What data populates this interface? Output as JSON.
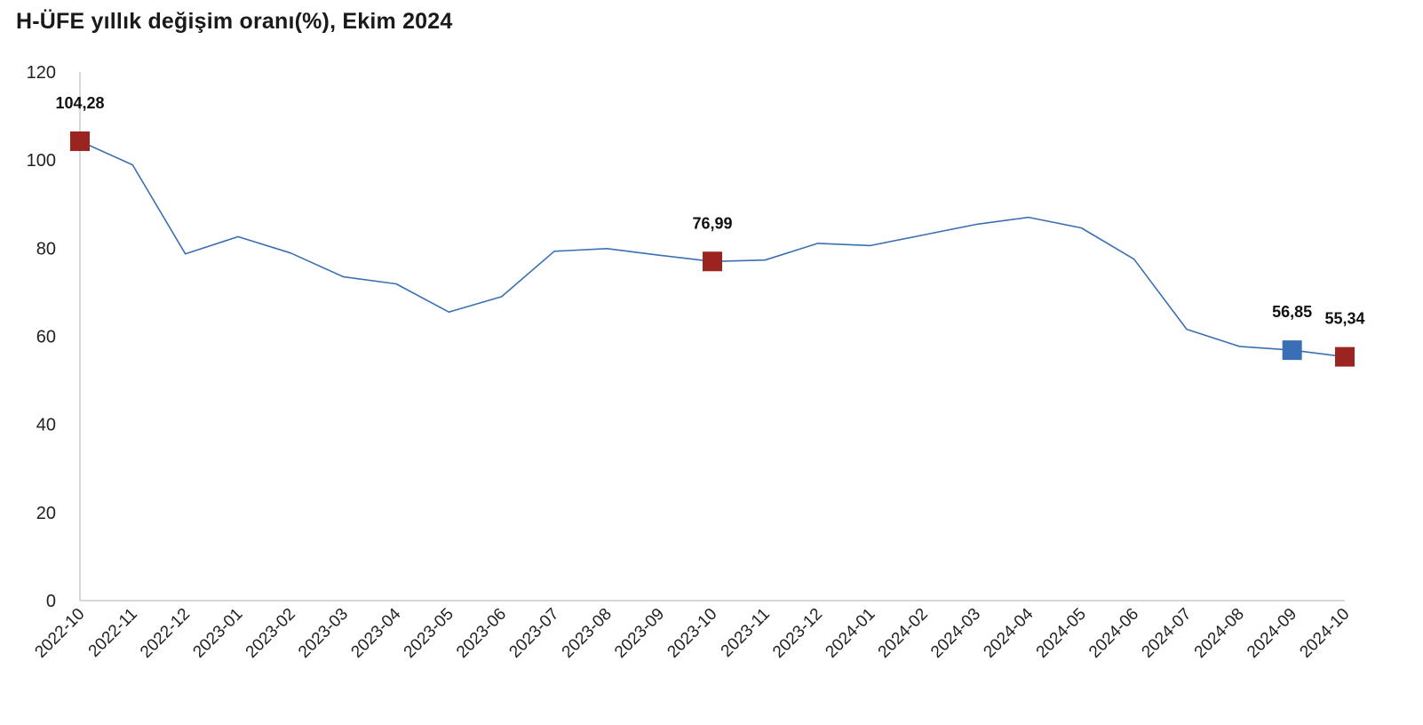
{
  "chart_data": {
    "type": "line",
    "title": "H-ÜFE yıllık değişim oranı(%), Ekim 2024",
    "xlabel": "",
    "ylabel": "",
    "ylim": [
      0,
      120
    ],
    "yticks": [
      0,
      20,
      40,
      60,
      80,
      100,
      120
    ],
    "grid": false,
    "legend": "none",
    "categories": [
      "2022-10",
      "2022-11",
      "2022-12",
      "2023-01",
      "2023-02",
      "2023-03",
      "2023-04",
      "2023-05",
      "2023-06",
      "2023-07",
      "2023-08",
      "2023-09",
      "2023-10",
      "2023-11",
      "2023-12",
      "2024-01",
      "2024-02",
      "2024-03",
      "2024-04",
      "2024-05",
      "2024-06",
      "2024-07",
      "2024-08",
      "2024-09",
      "2024-10"
    ],
    "series": [
      {
        "values": [
          104.28,
          98.9,
          78.7,
          82.6,
          78.9,
          73.5,
          71.9,
          65.5,
          69.0,
          79.3,
          79.9,
          78.4,
          76.99,
          77.3,
          81.1,
          80.6,
          83.0,
          85.4,
          87.0,
          84.6,
          77.5,
          61.6,
          57.7,
          56.85,
          55.34
        ],
        "color": "#3a70b3"
      }
    ],
    "highlights": [
      {
        "index": 0,
        "label": "104,28",
        "color": "#9b2320"
      },
      {
        "index": 12,
        "label": "76,99",
        "color": "#9b2320"
      },
      {
        "index": 23,
        "label": "56,85",
        "color": "#3b6fb5"
      },
      {
        "index": 24,
        "label": "55,34",
        "color": "#9b2320"
      }
    ],
    "axis_color": "#cccccc"
  }
}
